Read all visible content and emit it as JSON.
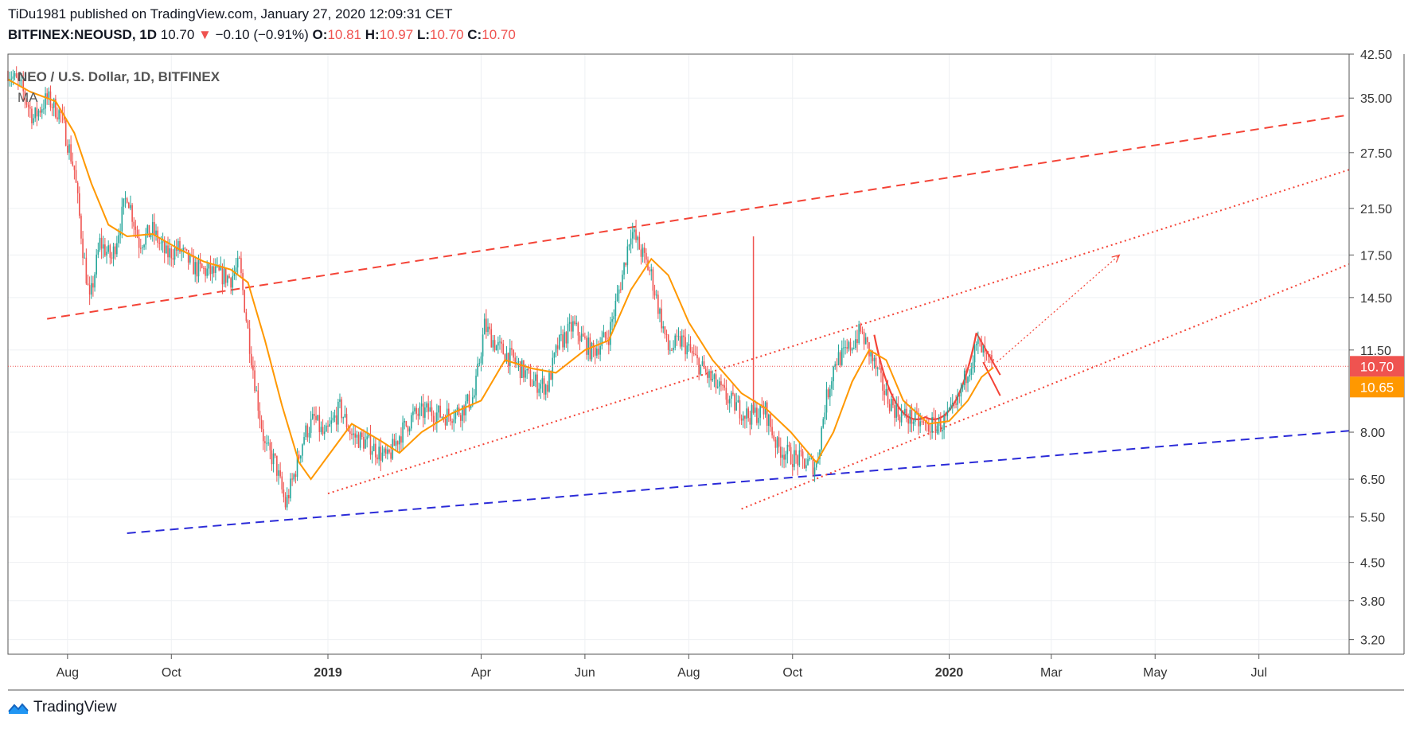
{
  "header": {
    "line1": "TiDu1981 published on TradingView.com, January 27, 2020 12:09:31 CET",
    "symbol": "BITFINEX:NEOUSD, 1D",
    "last": "10.70",
    "arrow": "▼",
    "change": "−0.10 (−0.91%)",
    "o_label": "O:",
    "o_value": "10.81",
    "h_label": "H:",
    "h_value": "10.97",
    "l_label": "L:",
    "l_value": "10.70",
    "c_label": "C:",
    "c_value": "10.70"
  },
  "footer": {
    "brand": "TradingView",
    "logo_icon": "tradingview-logo-icon"
  },
  "chart_data": {
    "type": "candlestick",
    "legend_title": "NEO / U.S. Dollar, 1D, BITFINEX",
    "legend_ma": "MA",
    "scale": "log",
    "ylim": [
      3.0,
      42.5
    ],
    "xlim": [
      "2018-06-27",
      "2020-08-23"
    ],
    "y_ticks": [
      "42.50",
      "35.00",
      "27.50",
      "21.50",
      "17.50",
      "14.50",
      "11.50",
      "8.00",
      "6.50",
      "5.50",
      "4.50",
      "3.80",
      "3.20"
    ],
    "x_ticks": [
      {
        "label": "Aug",
        "date": "2018-08-01",
        "bold": false
      },
      {
        "label": "Oct",
        "date": "2018-10-01",
        "bold": false
      },
      {
        "label": "2019",
        "date": "2019-01-01",
        "bold": true
      },
      {
        "label": "Apr",
        "date": "2019-04-01",
        "bold": false
      },
      {
        "label": "Jun",
        "date": "2019-06-01",
        "bold": false
      },
      {
        "label": "Aug",
        "date": "2019-08-01",
        "bold": false
      },
      {
        "label": "Oct",
        "date": "2019-10-01",
        "bold": false
      },
      {
        "label": "2020",
        "date": "2020-01-01",
        "bold": true
      },
      {
        "label": "Mar",
        "date": "2020-03-01",
        "bold": false
      },
      {
        "label": "May",
        "date": "2020-05-01",
        "bold": false
      },
      {
        "label": "Jul",
        "date": "2020-07-01",
        "bold": false
      }
    ],
    "price_label": {
      "value": "10.70",
      "color": "#ef5350"
    },
    "ma_label": {
      "value": "10.65",
      "color": "#ff9800"
    },
    "close_path": [
      [
        "2018-06-27",
        39.5
      ],
      [
        "2018-07-05",
        36.5
      ],
      [
        "2018-07-12",
        32.0
      ],
      [
        "2018-07-20",
        35.0
      ],
      [
        "2018-07-28",
        32.5
      ],
      [
        "2018-08-05",
        25.5
      ],
      [
        "2018-08-10",
        18.0
      ],
      [
        "2018-08-14",
        14.2
      ],
      [
        "2018-08-20",
        18.5
      ],
      [
        "2018-08-27",
        17.2
      ],
      [
        "2018-09-05",
        23.0
      ],
      [
        "2018-09-12",
        18.5
      ],
      [
        "2018-09-20",
        19.5
      ],
      [
        "2018-09-28",
        17.5
      ],
      [
        "2018-10-05",
        18.0
      ],
      [
        "2018-10-15",
        16.5
      ],
      [
        "2018-10-25",
        16.2
      ],
      [
        "2018-11-05",
        15.8
      ],
      [
        "2018-11-10",
        16.8
      ],
      [
        "2018-11-15",
        12.5
      ],
      [
        "2018-11-20",
        9.5
      ],
      [
        "2018-11-25",
        7.5
      ],
      [
        "2018-12-01",
        7.0
      ],
      [
        "2018-12-07",
        5.8
      ],
      [
        "2018-12-12",
        6.6
      ],
      [
        "2018-12-18",
        7.9
      ],
      [
        "2018-12-24",
        8.5
      ],
      [
        "2018-12-30",
        7.8
      ],
      [
        "2019-01-08",
        8.9
      ],
      [
        "2019-01-15",
        7.9
      ],
      [
        "2019-01-25",
        7.6
      ],
      [
        "2019-02-05",
        7.1
      ],
      [
        "2019-02-12",
        7.9
      ],
      [
        "2019-02-20",
        8.6
      ],
      [
        "2019-03-01",
        8.8
      ],
      [
        "2019-03-10",
        8.6
      ],
      [
        "2019-03-20",
        8.8
      ],
      [
        "2019-03-28",
        9.4
      ],
      [
        "2019-04-03",
        12.8
      ],
      [
        "2019-04-10",
        11.7
      ],
      [
        "2019-04-20",
        11.0
      ],
      [
        "2019-05-01",
        10.0
      ],
      [
        "2019-05-10",
        9.8
      ],
      [
        "2019-05-16",
        11.7
      ],
      [
        "2019-05-25",
        12.8
      ],
      [
        "2019-06-05",
        11.4
      ],
      [
        "2019-06-15",
        12.3
      ],
      [
        "2019-06-23",
        16.0
      ],
      [
        "2019-06-28",
        19.6
      ],
      [
        "2019-07-05",
        17.5
      ],
      [
        "2019-07-10",
        16.0
      ],
      [
        "2019-07-15",
        13.5
      ],
      [
        "2019-07-20",
        11.5
      ],
      [
        "2019-07-28",
        12.0
      ],
      [
        "2019-08-05",
        11.0
      ],
      [
        "2019-08-15",
        10.0
      ],
      [
        "2019-08-25",
        9.2
      ],
      [
        "2019-09-05",
        8.6
      ],
      [
        "2019-09-15",
        8.8
      ],
      [
        "2019-09-22",
        7.5
      ],
      [
        "2019-09-30",
        7.2
      ],
      [
        "2019-10-08",
        7.0
      ],
      [
        "2019-10-15",
        6.9
      ],
      [
        "2019-10-20",
        9.0
      ],
      [
        "2019-10-26",
        11.0
      ],
      [
        "2019-11-01",
        11.3
      ],
      [
        "2019-11-10",
        12.5
      ],
      [
        "2019-11-18",
        10.8
      ],
      [
        "2019-11-25",
        9.4
      ],
      [
        "2019-12-02",
        8.7
      ],
      [
        "2019-12-10",
        8.5
      ],
      [
        "2019-12-18",
        8.2
      ],
      [
        "2019-12-28",
        8.3
      ],
      [
        "2020-01-05",
        8.9
      ],
      [
        "2020-01-12",
        10.6
      ],
      [
        "2020-01-18",
        11.8
      ],
      [
        "2020-01-23",
        11.0
      ],
      [
        "2020-01-27",
        10.7
      ]
    ],
    "ma_path": [
      [
        "2018-06-27",
        38.0
      ],
      [
        "2018-07-10",
        36.0
      ],
      [
        "2018-07-25",
        34.5
      ],
      [
        "2018-08-05",
        30.0
      ],
      [
        "2018-08-15",
        24.0
      ],
      [
        "2018-08-25",
        20.0
      ],
      [
        "2018-09-05",
        19.0
      ],
      [
        "2018-09-20",
        19.2
      ],
      [
        "2018-10-05",
        18.0
      ],
      [
        "2018-10-20",
        17.0
      ],
      [
        "2018-11-05",
        16.4
      ],
      [
        "2018-11-15",
        15.5
      ],
      [
        "2018-11-25",
        12.0
      ],
      [
        "2018-12-05",
        9.0
      ],
      [
        "2018-12-15",
        7.0
      ],
      [
        "2018-12-22",
        6.5
      ],
      [
        "2019-01-01",
        7.2
      ],
      [
        "2019-01-15",
        8.3
      ],
      [
        "2019-02-01",
        7.7
      ],
      [
        "2019-02-12",
        7.3
      ],
      [
        "2019-02-25",
        8.0
      ],
      [
        "2019-03-15",
        8.7
      ],
      [
        "2019-04-01",
        9.2
      ],
      [
        "2019-04-15",
        11.0
      ],
      [
        "2019-05-01",
        10.6
      ],
      [
        "2019-05-15",
        10.4
      ],
      [
        "2019-06-01",
        11.5
      ],
      [
        "2019-06-15",
        12.0
      ],
      [
        "2019-06-28",
        15.0
      ],
      [
        "2019-07-10",
        17.2
      ],
      [
        "2019-07-20",
        16.0
      ],
      [
        "2019-08-01",
        13.0
      ],
      [
        "2019-08-15",
        11.0
      ],
      [
        "2019-09-01",
        9.5
      ],
      [
        "2019-09-15",
        8.9
      ],
      [
        "2019-09-30",
        8.0
      ],
      [
        "2019-10-15",
        7.0
      ],
      [
        "2019-10-25",
        8.0
      ],
      [
        "2019-11-05",
        10.0
      ],
      [
        "2019-11-15",
        11.5
      ],
      [
        "2019-11-25",
        11.0
      ],
      [
        "2019-12-05",
        9.2
      ],
      [
        "2019-12-20",
        8.3
      ],
      [
        "2020-01-01",
        8.4
      ],
      [
        "2020-01-12",
        9.2
      ],
      [
        "2020-01-20",
        10.2
      ],
      [
        "2020-01-27",
        10.65
      ]
    ],
    "wick_spike": {
      "date": "2019-09-08",
      "low": 8.7,
      "high": 19.0
    },
    "trendlines": [
      {
        "from": [
          "2018-07-20",
          13.2
        ],
        "to": [
          "2020-08-23",
          32.5
        ],
        "color": "#f44336",
        "style": "dashed"
      },
      {
        "from": [
          "2018-09-05",
          5.12
        ],
        "to": [
          "2020-08-23",
          8.05
        ],
        "color": "#2b2bd8",
        "style": "dashed"
      },
      {
        "from": [
          "2019-01-01",
          6.1
        ],
        "to": [
          "2020-08-23",
          25.5
        ],
        "color": "#f44336",
        "style": "dotted"
      },
      {
        "from": [
          "2019-09-01",
          5.7
        ],
        "to": [
          "2020-08-23",
          16.8
        ],
        "color": "#f44336",
        "style": "dotted"
      },
      {
        "from": [
          "2020-01-29",
          10.9
        ],
        "to": [
          "2020-04-10",
          17.5
        ],
        "color": "#f44336",
        "style": "dotted-arrow"
      },
      {
        "from": [
          "2020-01-17",
          12.4
        ],
        "to": [
          "2020-01-31",
          10.3
        ],
        "color": "#f44336",
        "style": "solid"
      },
      {
        "from": [
          "2020-01-21",
          10.9
        ],
        "to": [
          "2020-01-31",
          9.4
        ],
        "color": "#f44336",
        "style": "solid"
      }
    ],
    "cup_curve": {
      "from": [
        "2019-11-18",
        12.3
      ],
      "bottom": [
        "2019-12-18",
        8.55
      ],
      "to": [
        "2020-01-17",
        12.4
      ],
      "color": "#f44336"
    }
  }
}
